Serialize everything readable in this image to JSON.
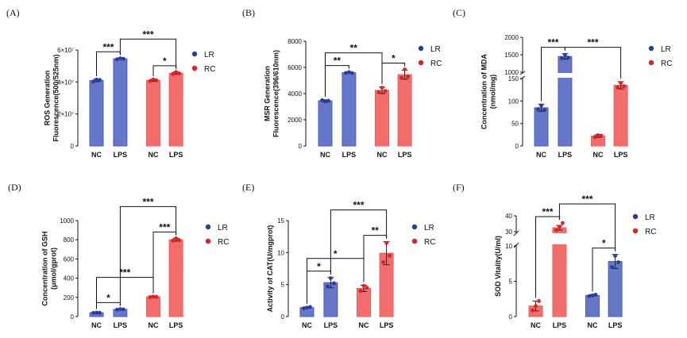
{
  "colors": {
    "LR": "#4b5db8",
    "RC": "#f25a5a",
    "LR_fill": "#6676c9",
    "RC_fill": "#f46d6d",
    "LR_dot": "#2a3ba0",
    "RC_dot": "#e02020"
  },
  "legend": [
    "LR",
    "RC"
  ],
  "chart_data": [
    {
      "panel": "(A)",
      "type": "bar",
      "ylabel": [
        "ROS Generation",
        "Fluorescence(500/525nm)"
      ],
      "ylim": [
        0,
        60000000
      ],
      "yticks": [
        0,
        20000000,
        40000000,
        60000000
      ],
      "ytick_labels": [
        "0",
        "2×10⁷",
        "4×10⁷",
        "6×10⁷"
      ],
      "categories": [
        "NC",
        "LPS",
        "NC",
        "LPS"
      ],
      "groups": [
        "LR",
        "LR",
        "RC",
        "RC"
      ],
      "values": [
        41000000,
        54500000,
        41000000,
        45500000
      ],
      "errors": [
        800000,
        400000,
        600000,
        700000
      ],
      "points": [
        [
          40200000,
          41500000,
          41300000
        ],
        [
          54200000,
          54800000,
          54500000
        ],
        [
          40500000,
          41600000,
          41000000
        ],
        [
          45000000,
          46200000,
          45400000
        ]
      ],
      "significance": [
        {
          "from": 0,
          "to": 1,
          "label": "***",
          "level": 1
        },
        {
          "from": 2,
          "to": 3,
          "label": "*",
          "level": 1
        },
        {
          "from": 1,
          "to": 3,
          "label": "***",
          "level": 2
        }
      ]
    },
    {
      "panel": "(B)",
      "type": "bar",
      "ylabel": [
        "MSR Generation",
        "Fluorescence(396/610nm)"
      ],
      "ylim": [
        0,
        8000
      ],
      "yticks": [
        0,
        2000,
        4000,
        6000,
        8000
      ],
      "ytick_labels": [
        "0",
        "2000",
        "4000",
        "6000",
        "8000"
      ],
      "categories": [
        "NC",
        "LPS",
        "NC",
        "LPS"
      ],
      "groups": [
        "LR",
        "LR",
        "RC",
        "RC"
      ],
      "values": [
        3450,
        5600,
        4250,
        5450
      ],
      "errors": [
        80,
        60,
        250,
        350
      ],
      "points": [
        [
          3500,
          3400,
          3450
        ],
        [
          5580,
          5650,
          5570
        ],
        [
          4100,
          4450,
          4200
        ],
        [
          5200,
          5850,
          5300
        ]
      ],
      "significance": [
        {
          "from": 0,
          "to": 1,
          "label": "**",
          "level": 1
        },
        {
          "from": 2,
          "to": 3,
          "label": "*",
          "level": 1
        },
        {
          "from": 0,
          "to": 2,
          "label": "**",
          "level": 2
        }
      ]
    },
    {
      "panel": "(C)",
      "type": "bar",
      "ylabel": [
        "Concentration of MDA",
        "(nmol/mg)"
      ],
      "broken_axis": true,
      "yticks": [
        0,
        50,
        100,
        150,
        1000,
        1500,
        2000
      ],
      "ytick_labels": [
        "0",
        "50",
        "100",
        "150",
        "1000",
        "1500",
        "2000"
      ],
      "categories": [
        "NC",
        "LPS",
        "NC",
        "LPS"
      ],
      "groups": [
        "LR",
        "LR",
        "RC",
        "RC"
      ],
      "values": [
        85,
        1450,
        22,
        135
      ],
      "errors": [
        8,
        80,
        3,
        8
      ],
      "points": [
        [
          82,
          90,
          80
        ],
        [
          1400,
          1500,
          1420
        ],
        [
          20,
          24,
          23
        ],
        [
          130,
          140,
          133
        ]
      ],
      "significance": [
        {
          "from": 0,
          "to": 1,
          "label": "***",
          "level": 1
        },
        {
          "from": 1,
          "to": 3,
          "label": "***",
          "level": 1
        }
      ]
    },
    {
      "panel": "(D)",
      "type": "bar",
      "ylabel": [
        "Concentration of GSH",
        "(μmol/gprot)"
      ],
      "ylim": [
        0,
        1000
      ],
      "yticks": [
        0,
        200,
        400,
        600,
        800,
        1000
      ],
      "ytick_labels": [
        "0",
        "200",
        "400",
        "600",
        "800",
        "1000"
      ],
      "categories": [
        "NC",
        "LPS",
        "NC",
        "LPS"
      ],
      "groups": [
        "LR",
        "LR",
        "RC",
        "RC"
      ],
      "values": [
        40,
        75,
        205,
        800
      ],
      "errors": [
        5,
        5,
        5,
        15
      ],
      "points": [
        [
          38,
          42,
          40
        ],
        [
          72,
          78,
          75
        ],
        [
          203,
          208,
          205
        ],
        [
          790,
          815,
          795
        ]
      ],
      "significance": [
        {
          "from": 0,
          "to": 1,
          "label": "*",
          "level": 1
        },
        {
          "from": 2,
          "to": 3,
          "label": "***",
          "level": 1
        },
        {
          "from": 0,
          "to": 2,
          "label": "***",
          "level": 2
        },
        {
          "from": 1,
          "to": 3,
          "label": "***",
          "level": 3
        }
      ]
    },
    {
      "panel": "(E)",
      "type": "bar",
      "ylabel": [
        "Activity of CAT(U/mgprot)"
      ],
      "ylim": [
        0,
        15
      ],
      "yticks": [
        0,
        5,
        10,
        15
      ],
      "ytick_labels": [
        "0",
        "5",
        "10",
        "15"
      ],
      "categories": [
        "NC",
        "LPS",
        "NC",
        "LPS"
      ],
      "groups": [
        "LR",
        "LR",
        "RC",
        "RC"
      ],
      "values": [
        1.4,
        5.3,
        4.4,
        9.9
      ],
      "errors": [
        0.1,
        0.8,
        0.5,
        1.8
      ],
      "points": [
        [
          1.3,
          1.4,
          1.5
        ],
        [
          4.7,
          6.0,
          5.2
        ],
        [
          4.0,
          4.8,
          4.5
        ],
        [
          8.5,
          11.5,
          9.5
        ]
      ],
      "significance": [
        {
          "from": 0,
          "to": 1,
          "label": "*",
          "level": 1
        },
        {
          "from": 2,
          "to": 3,
          "label": "**",
          "level": 1
        },
        {
          "from": 0,
          "to": 2,
          "label": "*",
          "level": 2
        },
        {
          "from": 1,
          "to": 3,
          "label": "***",
          "level": 3
        }
      ]
    },
    {
      "panel": "(F)",
      "type": "bar",
      "ylabel": [
        "SOD Vitality(U/ml)"
      ],
      "broken_axis": true,
      "yticks": [
        0,
        5,
        10,
        30,
        40
      ],
      "ytick_labels": [
        "0",
        "5",
        "10",
        "30",
        "40"
      ],
      "categories": [
        "NC",
        "LPS",
        "NC",
        "LPS"
      ],
      "groups": [
        "RC",
        "RC",
        "LR",
        "LR"
      ],
      "values": [
        1.5,
        32.5,
        3.0,
        7.8
      ],
      "errors": [
        0.7,
        1.5,
        0.1,
        1.0
      ],
      "points": [
        [
          0.9,
          1.5,
          2.2
        ],
        [
          31.0,
          33.0,
          35.5
        ],
        [
          2.9,
          3.0,
          3.1
        ],
        [
          7.0,
          8.6,
          7.7
        ]
      ],
      "significance": [
        {
          "from": 0,
          "to": 1,
          "label": "***",
          "level": 1
        },
        {
          "from": 2,
          "to": 3,
          "label": "*",
          "level": 1
        },
        {
          "from": 1,
          "to": 3,
          "label": "***",
          "level": 2
        }
      ]
    }
  ]
}
